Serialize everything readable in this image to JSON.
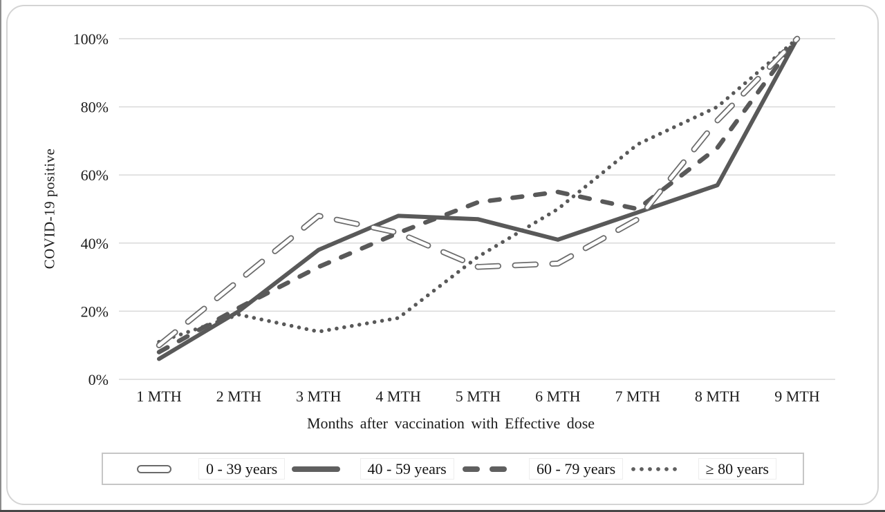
{
  "axes": {
    "y_title": "COVID-19 positive",
    "x_title": "Months after vaccination with Effective dose",
    "y_tick_labels": [
      "0%",
      "20%",
      "40%",
      "60%",
      "80%",
      "100%"
    ],
    "x_tick_labels": [
      "1 MTH",
      "2 MTH",
      "3 MTH",
      "4 MTH",
      "5 MTH",
      "6 MTH",
      "7 MTH",
      "8 MTH",
      "9 MTH"
    ]
  },
  "legend": {
    "items": [
      {
        "label": "0 - 39 years",
        "marker": "outlined-dash"
      },
      {
        "label": "40 - 59 years",
        "marker": "solid"
      },
      {
        "label": "60 - 79 years",
        "marker": "dashed"
      },
      {
        "label": "≥ 80 years",
        "marker": "dotted"
      }
    ]
  },
  "chart_data": {
    "type": "line",
    "categories": [
      "1 MTH",
      "2 MTH",
      "3 MTH",
      "4 MTH",
      "5 MTH",
      "6 MTH",
      "7 MTH",
      "8 MTH",
      "9 MTH"
    ],
    "series": [
      {
        "name": "0 - 39 years",
        "style": "outlined-dash",
        "values": [
          10,
          29,
          48,
          43,
          33,
          34,
          47,
          76,
          100
        ]
      },
      {
        "name": "40 - 59 years",
        "style": "solid",
        "values": [
          6,
          20,
          38,
          48,
          47,
          41,
          49,
          57,
          100
        ]
      },
      {
        "name": "60 - 79 years",
        "style": "dashed",
        "values": [
          8,
          21,
          33,
          43,
          52,
          55,
          50,
          68,
          100
        ]
      },
      {
        "name": "≥ 80 years",
        "style": "dotted",
        "values": [
          11,
          19,
          14,
          18,
          36,
          50,
          69,
          80,
          100
        ]
      }
    ],
    "title": "",
    "xlabel": "Months after vaccination with Effective dose",
    "ylabel": "COVID-19 positive",
    "ylim": [
      0,
      100
    ],
    "yticks_percent": [
      0,
      20,
      40,
      60,
      80,
      100
    ],
    "grid": "horizontal",
    "legend_position": "bottom",
    "line_color": "#595959",
    "gridline_color": "#d9d9d9",
    "text_color": "#1c1c1c"
  }
}
